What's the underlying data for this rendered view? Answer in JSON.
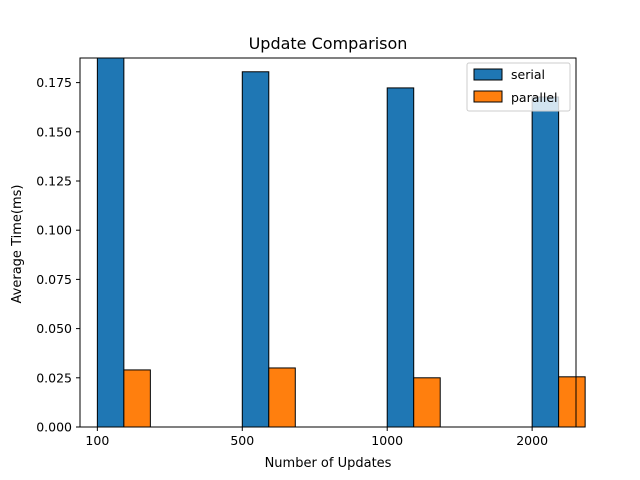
{
  "chart_data": {
    "type": "bar",
    "title": "Update Comparison",
    "xlabel": "Number of Updates",
    "ylabel": "Average Time(ms)",
    "categories": [
      "100",
      "500",
      "1000",
      "2000"
    ],
    "series": [
      {
        "name": "serial",
        "color": "#1f77b4",
        "values": [
          0.1875,
          0.1805,
          0.1723,
          0.1677
        ]
      },
      {
        "name": "parallel",
        "color": "#ff7f0e",
        "values": [
          0.029,
          0.03,
          0.025,
          0.0255
        ]
      }
    ],
    "ylim": [
      0,
      0.1875
    ],
    "yticks": [
      "0.000",
      "0.025",
      "0.050",
      "0.075",
      "0.100",
      "0.125",
      "0.150",
      "0.175"
    ],
    "grid": false,
    "legend_position": "top-right"
  }
}
